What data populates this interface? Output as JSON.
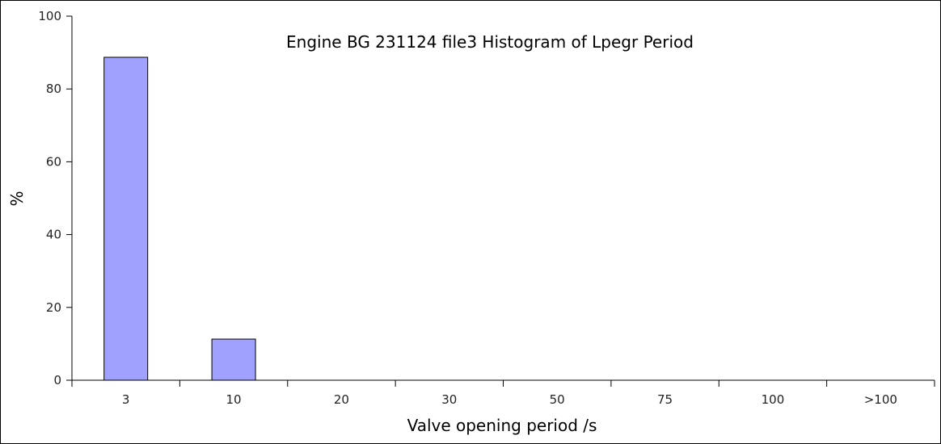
{
  "chart_data": {
    "type": "bar",
    "title": "Engine BG 231124 file3 Histogram of Lpegr Period",
    "xlabel": "Valve opening period /s",
    "ylabel": "%",
    "categories": [
      "3",
      "10",
      "20",
      "30",
      "50",
      "75",
      "100",
      ">100"
    ],
    "values": [
      88.7,
      11.3,
      0,
      0,
      0,
      0,
      0,
      0
    ],
    "ylim": [
      0,
      100
    ],
    "yticks": [
      "0",
      "20",
      "40",
      "60",
      "80",
      "100"
    ],
    "grid": false,
    "legend": "none",
    "bar_color": "#a0a0ff",
    "bar_edge_color": "#000000"
  }
}
